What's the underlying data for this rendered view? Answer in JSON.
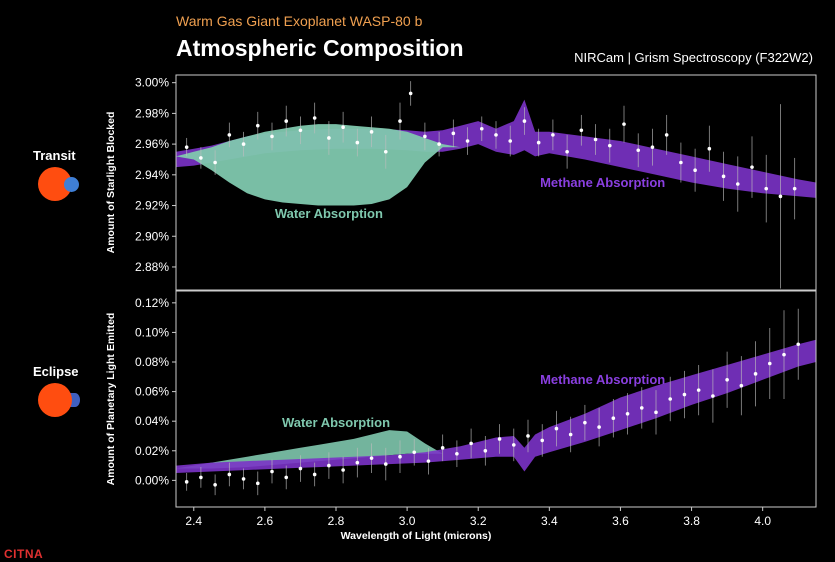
{
  "header": {
    "subtitle": "Warm Gas Giant Exoplanet WASP-80 b",
    "title": "Atmospheric Composition",
    "instrument": "NIRCam | Grism Spectroscopy (F322W2)"
  },
  "side_labels": {
    "transit": "Transit",
    "eclipse": "Eclipse"
  },
  "logo_text": "CITNA",
  "colors": {
    "water": "#7fc8ae",
    "methane": "#7b33c8",
    "star": "#ff4d10",
    "planet": "#3f7fd6",
    "subtitle": "#f0a050"
  },
  "icons": {
    "transit": "planet-in-front-of-star-icon",
    "eclipse": "planet-behind-star-icon"
  },
  "chart_data": [
    {
      "id": "transit",
      "type": "area",
      "ylabel": "Amount of Starlight Blocked",
      "xlabel": "Wavelength of Light (microns)",
      "xlim": [
        2.35,
        4.15
      ],
      "ylim": [
        2.865,
        3.005
      ],
      "yticks": [
        "3.00%",
        "2.98%",
        "2.96%",
        "2.94%",
        "2.92%",
        "2.90%",
        "2.88%"
      ],
      "ytick_values": [
        3.0,
        2.98,
        2.96,
        2.94,
        2.92,
        2.9,
        2.88
      ],
      "annotations": [
        {
          "text": "Water Absorption",
          "x": 2.78,
          "y": 2.912
        },
        {
          "text": "Methane Absorption",
          "x": 3.55,
          "y": 2.932
        }
      ],
      "series": [
        {
          "name": "Water Absorption",
          "x": [
            2.35,
            2.4,
            2.45,
            2.5,
            2.55,
            2.6,
            2.65,
            2.7,
            2.75,
            2.8,
            2.85,
            2.9,
            2.95,
            3.0,
            3.05,
            3.1,
            3.15
          ],
          "upper": [
            2.952,
            2.955,
            2.958,
            2.962,
            2.965,
            2.968,
            2.97,
            2.972,
            2.973,
            2.973,
            2.972,
            2.971,
            2.97,
            2.968,
            2.964,
            2.96,
            2.958
          ],
          "lower": [
            2.952,
            2.95,
            2.943,
            2.935,
            2.928,
            2.924,
            2.922,
            2.921,
            2.92,
            2.92,
            2.92,
            2.921,
            2.924,
            2.932,
            2.948,
            2.958,
            2.958
          ]
        },
        {
          "name": "Methane Absorption",
          "x": [
            2.35,
            2.4,
            2.45,
            2.5,
            2.55,
            2.6,
            2.7,
            2.8,
            2.9,
            3.0,
            3.05,
            3.1,
            3.15,
            3.2,
            3.25,
            3.3,
            3.33,
            3.36,
            3.4,
            3.5,
            3.6,
            3.7,
            3.8,
            3.9,
            4.0,
            4.1,
            4.15
          ],
          "upper": [
            2.955,
            2.957,
            2.959,
            2.962,
            2.965,
            2.967,
            2.969,
            2.97,
            2.97,
            2.969,
            2.968,
            2.969,
            2.972,
            2.975,
            2.97,
            2.975,
            2.989,
            2.968,
            2.968,
            2.965,
            2.962,
            2.957,
            2.952,
            2.947,
            2.942,
            2.937,
            2.935
          ],
          "lower": [
            2.945,
            2.946,
            2.948,
            2.95,
            2.952,
            2.954,
            2.956,
            2.957,
            2.957,
            2.956,
            2.955,
            2.955,
            2.957,
            2.96,
            2.955,
            2.953,
            2.956,
            2.952,
            2.954,
            2.95,
            2.945,
            2.94,
            2.935,
            2.931,
            2.928,
            2.926,
            2.925
          ]
        }
      ],
      "observations": {
        "x": [
          2.38,
          2.42,
          2.46,
          2.5,
          2.54,
          2.58,
          2.62,
          2.66,
          2.7,
          2.74,
          2.78,
          2.82,
          2.86,
          2.9,
          2.94,
          2.98,
          3.01,
          3.05,
          3.09,
          3.13,
          3.17,
          3.21,
          3.25,
          3.29,
          3.33,
          3.37,
          3.41,
          3.45,
          3.49,
          3.53,
          3.57,
          3.61,
          3.65,
          3.69,
          3.73,
          3.77,
          3.81,
          3.85,
          3.89,
          3.93,
          3.97,
          4.01,
          4.05,
          4.09
        ],
        "y": [
          2.958,
          2.951,
          2.948,
          2.966,
          2.96,
          2.972,
          2.965,
          2.975,
          2.969,
          2.977,
          2.964,
          2.971,
          2.961,
          2.968,
          2.955,
          2.975,
          2.993,
          2.965,
          2.96,
          2.967,
          2.962,
          2.97,
          2.966,
          2.962,
          2.975,
          2.961,
          2.966,
          2.955,
          2.969,
          2.963,
          2.959,
          2.973,
          2.956,
          2.958,
          2.966,
          2.948,
          2.943,
          2.957,
          2.939,
          2.934,
          2.945,
          2.931,
          2.926,
          2.931
        ],
        "err": [
          0.006,
          0.007,
          0.008,
          0.008,
          0.008,
          0.009,
          0.009,
          0.01,
          0.009,
          0.01,
          0.011,
          0.01,
          0.009,
          0.01,
          0.011,
          0.012,
          0.008,
          0.009,
          0.008,
          0.009,
          0.009,
          0.008,
          0.009,
          0.01,
          0.009,
          0.009,
          0.01,
          0.011,
          0.01,
          0.01,
          0.011,
          0.012,
          0.011,
          0.012,
          0.013,
          0.013,
          0.014,
          0.015,
          0.016,
          0.018,
          0.02,
          0.022,
          0.06,
          0.02
        ]
      }
    },
    {
      "id": "eclipse",
      "type": "area",
      "ylabel": "Amount of Planetary Light Emitted",
      "xlabel": "Wavelength of Light (microns)",
      "xlim": [
        2.35,
        4.15
      ],
      "ylim": [
        -0.018,
        0.128
      ],
      "yticks": [
        "0.12%",
        "0.10%",
        "0.08%",
        "0.06%",
        "0.04%",
        "0.02%",
        "0.00%"
      ],
      "ytick_values": [
        0.12,
        0.1,
        0.08,
        0.06,
        0.04,
        0.02,
        0.0
      ],
      "xticks": [
        "2.4",
        "2.6",
        "2.8",
        "3.0",
        "3.2",
        "3.4",
        "3.6",
        "3.8",
        "4.0"
      ],
      "xtick_values": [
        2.4,
        2.6,
        2.8,
        3.0,
        3.2,
        3.4,
        3.6,
        3.8,
        4.0
      ],
      "annotations": [
        {
          "text": "Water Absorption",
          "x": 2.8,
          "y": 0.036
        },
        {
          "text": "Methane Absorption",
          "x": 3.55,
          "y": 0.065
        }
      ],
      "series": [
        {
          "name": "Water Absorption",
          "x": [
            2.35,
            2.45,
            2.55,
            2.6,
            2.65,
            2.7,
            2.75,
            2.8,
            2.85,
            2.9,
            2.95,
            3.0,
            3.05,
            3.1
          ],
          "upper": [
            0.008,
            0.012,
            0.016,
            0.018,
            0.02,
            0.022,
            0.024,
            0.026,
            0.028,
            0.031,
            0.034,
            0.033,
            0.025,
            0.018
          ],
          "lower": [
            0.008,
            0.008,
            0.009,
            0.01,
            0.011,
            0.012,
            0.013,
            0.014,
            0.015,
            0.016,
            0.017,
            0.018,
            0.018,
            0.018
          ]
        },
        {
          "name": "Methane Absorption",
          "x": [
            2.35,
            2.45,
            2.55,
            2.65,
            2.75,
            2.85,
            2.95,
            3.05,
            3.15,
            3.25,
            3.3,
            3.33,
            3.36,
            3.4,
            3.5,
            3.6,
            3.7,
            3.8,
            3.9,
            4.0,
            4.1,
            4.15
          ],
          "upper": [
            0.01,
            0.012,
            0.013,
            0.014,
            0.015,
            0.016,
            0.017,
            0.019,
            0.023,
            0.029,
            0.03,
            0.022,
            0.031,
            0.036,
            0.045,
            0.056,
            0.064,
            0.071,
            0.078,
            0.085,
            0.092,
            0.095
          ],
          "lower": [
            0.005,
            0.006,
            0.007,
            0.008,
            0.009,
            0.01,
            0.011,
            0.012,
            0.014,
            0.016,
            0.016,
            0.006,
            0.016,
            0.019,
            0.026,
            0.034,
            0.042,
            0.051,
            0.059,
            0.068,
            0.077,
            0.08
          ]
        }
      ],
      "observations": {
        "x": [
          2.38,
          2.42,
          2.46,
          2.5,
          2.54,
          2.58,
          2.62,
          2.66,
          2.7,
          2.74,
          2.78,
          2.82,
          2.86,
          2.9,
          2.94,
          2.98,
          3.02,
          3.06,
          3.1,
          3.14,
          3.18,
          3.22,
          3.26,
          3.3,
          3.34,
          3.38,
          3.42,
          3.46,
          3.5,
          3.54,
          3.58,
          3.62,
          3.66,
          3.7,
          3.74,
          3.78,
          3.82,
          3.86,
          3.9,
          3.94,
          3.98,
          4.02,
          4.06,
          4.1
        ],
        "y": [
          -0.001,
          0.002,
          -0.003,
          0.004,
          0.001,
          -0.002,
          0.006,
          0.002,
          0.008,
          0.004,
          0.01,
          0.007,
          0.012,
          0.015,
          0.011,
          0.016,
          0.019,
          0.013,
          0.022,
          0.018,
          0.025,
          0.02,
          0.028,
          0.024,
          0.03,
          0.027,
          0.035,
          0.031,
          0.039,
          0.036,
          0.042,
          0.045,
          0.049,
          0.046,
          0.055,
          0.058,
          0.061,
          0.057,
          0.068,
          0.064,
          0.072,
          0.079,
          0.085,
          0.092
        ],
        "err": [
          0.006,
          0.007,
          0.007,
          0.008,
          0.007,
          0.008,
          0.008,
          0.008,
          0.009,
          0.008,
          0.009,
          0.009,
          0.01,
          0.01,
          0.011,
          0.011,
          0.009,
          0.009,
          0.009,
          0.009,
          0.01,
          0.01,
          0.01,
          0.011,
          0.011,
          0.011,
          0.012,
          0.012,
          0.012,
          0.013,
          0.013,
          0.014,
          0.014,
          0.015,
          0.015,
          0.016,
          0.017,
          0.018,
          0.019,
          0.02,
          0.022,
          0.024,
          0.03,
          0.024
        ]
      }
    }
  ]
}
